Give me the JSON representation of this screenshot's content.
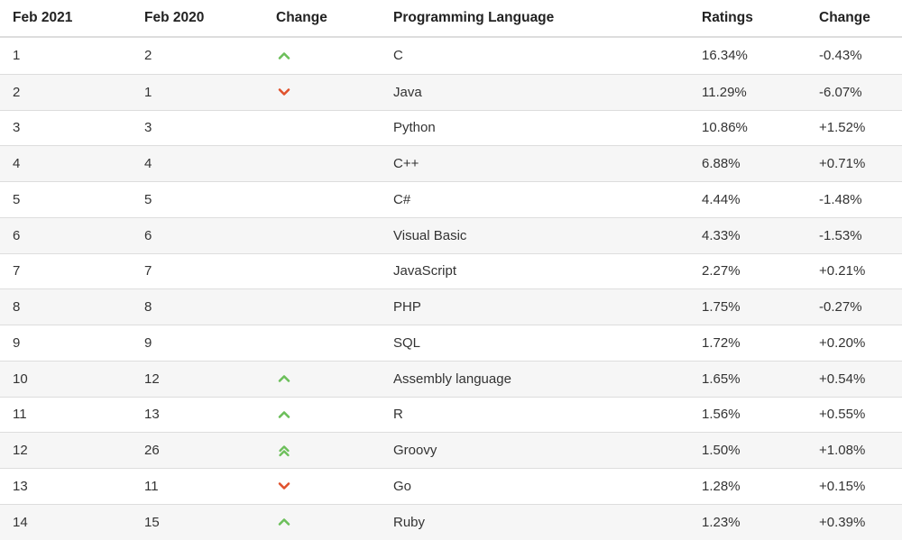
{
  "table": {
    "headers": [
      "Feb 2021",
      "Feb 2020",
      "Change",
      "Programming Language",
      "Ratings",
      "Change"
    ],
    "rows": [
      {
        "feb2021": "1",
        "feb2020": "2",
        "trend": "up",
        "language": "C",
        "rating": "16.34%",
        "change": "-0.43%"
      },
      {
        "feb2021": "2",
        "feb2020": "1",
        "trend": "down",
        "language": "Java",
        "rating": "11.29%",
        "change": "-6.07%"
      },
      {
        "feb2021": "3",
        "feb2020": "3",
        "trend": "none",
        "language": "Python",
        "rating": "10.86%",
        "change": "+1.52%"
      },
      {
        "feb2021": "4",
        "feb2020": "4",
        "trend": "none",
        "language": "C++",
        "rating": "6.88%",
        "change": "+0.71%"
      },
      {
        "feb2021": "5",
        "feb2020": "5",
        "trend": "none",
        "language": "C#",
        "rating": "4.44%",
        "change": "-1.48%"
      },
      {
        "feb2021": "6",
        "feb2020": "6",
        "trend": "none",
        "language": "Visual Basic",
        "rating": "4.33%",
        "change": "-1.53%"
      },
      {
        "feb2021": "7",
        "feb2020": "7",
        "trend": "none",
        "language": "JavaScript",
        "rating": "2.27%",
        "change": "+0.21%"
      },
      {
        "feb2021": "8",
        "feb2020": "8",
        "trend": "none",
        "language": "PHP",
        "rating": "1.75%",
        "change": "-0.27%"
      },
      {
        "feb2021": "9",
        "feb2020": "9",
        "trend": "none",
        "language": "SQL",
        "rating": "1.72%",
        "change": "+0.20%"
      },
      {
        "feb2021": "10",
        "feb2020": "12",
        "trend": "up",
        "language": "Assembly language",
        "rating": "1.65%",
        "change": "+0.54%"
      },
      {
        "feb2021": "11",
        "feb2020": "13",
        "trend": "up",
        "language": "R",
        "rating": "1.56%",
        "change": "+0.55%"
      },
      {
        "feb2021": "12",
        "feb2020": "26",
        "trend": "double-up",
        "language": "Groovy",
        "rating": "1.50%",
        "change": "+1.08%"
      },
      {
        "feb2021": "13",
        "feb2020": "11",
        "trend": "down",
        "language": "Go",
        "rating": "1.28%",
        "change": "+0.15%"
      },
      {
        "feb2021": "14",
        "feb2020": "15",
        "trend": "up",
        "language": "Ruby",
        "rating": "1.23%",
        "change": "+0.39%"
      }
    ]
  },
  "colors": {
    "up": "#6cbf5a",
    "down": "#e0522d",
    "stripe": "#f6f6f6",
    "border": "#dddddd"
  },
  "icons": {
    "up": "chevron-up-icon",
    "down": "chevron-down-icon",
    "double-up": "double-chevron-up-icon"
  }
}
